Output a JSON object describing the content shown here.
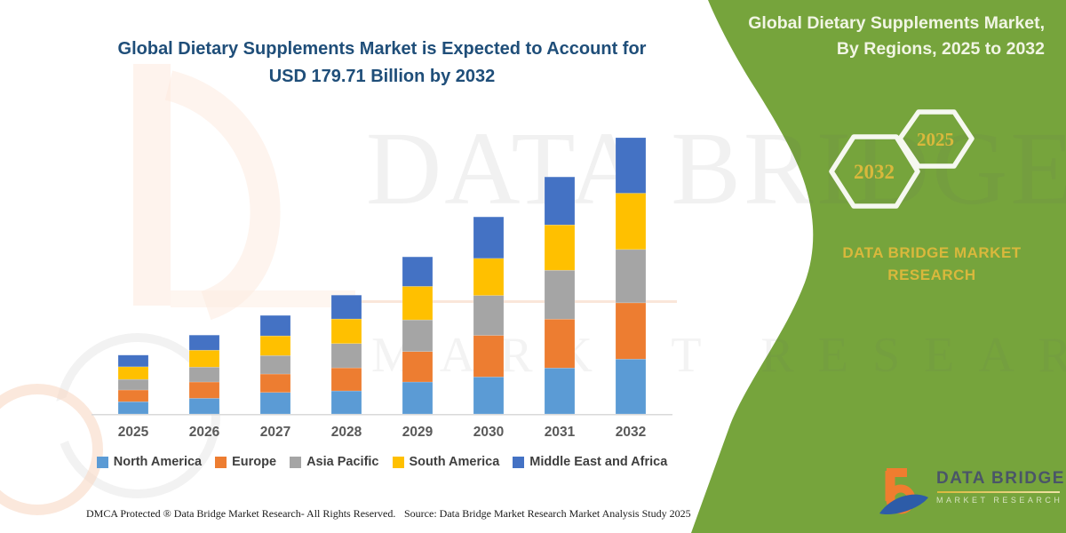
{
  "title": {
    "line1": "Global Dietary Supplements Market is Expected to Account for",
    "line2": "USD 179.71 Billion by 2032"
  },
  "panel": {
    "bg_color": "#76a43c",
    "accent_text_color": "#d9b83c",
    "header_line1": "Global Dietary Supplements Market,",
    "header_line2": "By Regions, 2025 to 2032",
    "hexagons": [
      {
        "year": "2032"
      },
      {
        "year": "2025"
      }
    ],
    "brand_line1": "DATA BRIDGE MARKET",
    "brand_line2": "RESEARCH"
  },
  "chart_data": {
    "type": "bar",
    "stacked": true,
    "title": "Global Dietary Supplements Market is Expected to Account for USD 179.71 Billion by 2032",
    "unit": "USD Billion",
    "categories": [
      "2025",
      "2026",
      "2027",
      "2028",
      "2029",
      "2030",
      "2031",
      "2032"
    ],
    "series": [
      {
        "name": "North America",
        "color": "#5b9bd5",
        "values": [
          8.0,
          10.2,
          14.0,
          15.0,
          20.8,
          24.1,
          29.9,
          35.7
        ]
      },
      {
        "name": "Europe",
        "color": "#ed7d31",
        "values": [
          7.6,
          10.6,
          12.0,
          15.0,
          19.8,
          27.0,
          31.8,
          36.6
        ]
      },
      {
        "name": "Asia Pacific",
        "color": "#a5a5a5",
        "values": [
          6.9,
          9.7,
          12.0,
          15.8,
          20.6,
          26.0,
          31.8,
          34.7
        ]
      },
      {
        "name": "South America",
        "color": "#ffc000",
        "values": [
          8.2,
          11.0,
          12.8,
          16.0,
          21.8,
          24.1,
          29.5,
          36.6
        ]
      },
      {
        "name": "Middle East and Africa",
        "color": "#4472c4",
        "values": [
          7.6,
          9.8,
          13.3,
          15.5,
          19.2,
          27.0,
          31.2,
          36.11
        ]
      }
    ],
    "totals": [
      38.3,
      51.3,
      64.1,
      77.3,
      102.2,
      128.2,
      154.2,
      179.71
    ],
    "ylim": [
      0,
      185
    ],
    "gridlines": false,
    "axis_labels_shown": "x-only",
    "legend_position": "bottom"
  },
  "watermark": {
    "line1": "DATA BRIDGE",
    "line2": "MARKET RESEARCH"
  },
  "footer": {
    "dmca": "DMCA Protected ® Data Bridge Market Research-  All Rights Reserved.",
    "source": "Source: Data Bridge Market Research  Market Analysis Study 2025"
  },
  "logo": {
    "name": "DATA BRIDGE",
    "sub": "MARKET RESEARCH"
  }
}
